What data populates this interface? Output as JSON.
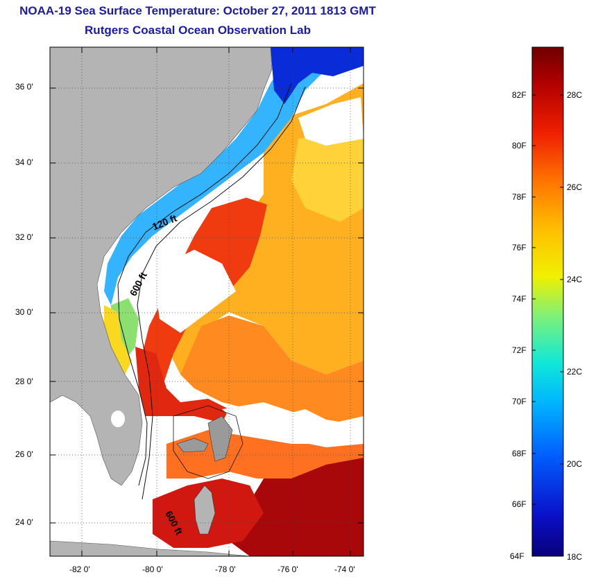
{
  "header": {
    "title": "NOAA-19 Sea Surface Temperature:  October 27, 2011 1813 GMT",
    "subtitle": "Rutgers Coastal Ocean Observation Lab"
  },
  "map": {
    "lat_ticks": [
      "36 0'",
      "34 0'",
      "32 0'",
      "30 0'",
      "28 0'",
      "26 0'",
      "24 0'"
    ],
    "lon_ticks": [
      "-82 0'",
      "-80 0'",
      "-78 0'",
      "-76 0'",
      "-74 0'"
    ],
    "lat_range": [
      23,
      37
    ],
    "lon_range": [
      -83,
      -73
    ],
    "contour_labels": [
      "120 ft",
      "600 ft",
      "600 ft"
    ],
    "land_color": "#b4b4b4",
    "cloud_color": "#ffffff"
  },
  "colorbar": {
    "fahrenheit_labels": [
      "82F",
      "80F",
      "78F",
      "76F",
      "74F",
      "72F",
      "70F",
      "68F",
      "66F",
      "64F"
    ],
    "celsius_labels": [
      "28C",
      "26C",
      "24C",
      "22C",
      "20C",
      "18C"
    ],
    "range_f": [
      64,
      84
    ],
    "colors": [
      "#08007a",
      "#0a10c8",
      "#0060ff",
      "#00b4ff",
      "#10e8d8",
      "#7df07a",
      "#f0f000",
      "#ffc000",
      "#ff7a00",
      "#f02000",
      "#b00000",
      "#6e0000"
    ]
  }
}
